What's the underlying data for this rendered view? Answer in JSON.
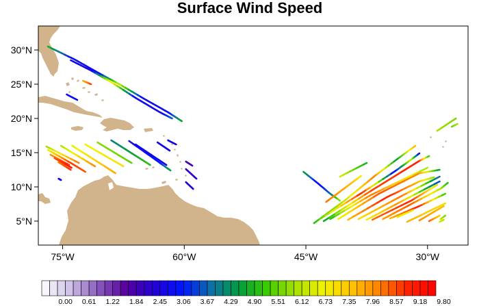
{
  "title": "Surface Wind Speed",
  "map": {
    "lon_range": [
      -78,
      -25
    ],
    "lat_range": [
      1.5,
      33.5
    ],
    "x_ticks": [
      {
        "value": -75,
        "label": "75°W"
      },
      {
        "value": -60,
        "label": "60°W"
      },
      {
        "value": -45,
        "label": "45°W"
      },
      {
        "value": -30,
        "label": "30°W"
      }
    ],
    "y_ticks": [
      {
        "value": 30,
        "label": "30°N"
      },
      {
        "value": 25,
        "label": "25°N"
      },
      {
        "value": 20,
        "label": "20°N"
      },
      {
        "value": 15,
        "label": "15°N"
      },
      {
        "value": 10,
        "label": "10°N"
      },
      {
        "value": 5,
        "label": "5°N"
      }
    ],
    "land_color": "#d2b48c"
  },
  "colorbar": {
    "min": 0,
    "max": 10.1,
    "labels": [
      "0.00",
      "0.61",
      "1.22",
      "1.84",
      "2.45",
      "3.06",
      "3.67",
      "4.29",
      "4.90",
      "5.51",
      "6.12",
      "6.73",
      "7.35",
      "7.96",
      "8.57",
      "9.18",
      "9.80"
    ],
    "stops": [
      "#ffffff",
      "#cfc2e6",
      "#8a5bbf",
      "#57009e",
      "#2200d6",
      "#0015ff",
      "#0d70a8",
      "#009c3f",
      "#3ccc00",
      "#a8e000",
      "#f2f200",
      "#ffc400",
      "#ff8000",
      "#ff2400",
      "#ff0000"
    ]
  },
  "swaths": [
    {
      "points": [
        [
          -76.8,
          30.5,
          5.4
        ],
        [
          -73.5,
          28.6,
          3.3
        ],
        [
          -70.5,
          26.6,
          3.2
        ],
        [
          -68,
          25,
          6.8
        ],
        [
          -65,
          22.9,
          3.3
        ],
        [
          -62,
          20.9,
          3.3
        ],
        [
          -60.3,
          19.6,
          5.3
        ]
      ]
    },
    {
      "points": [
        [
          -74,
          28.5,
          3.3
        ],
        [
          -71.5,
          27,
          3.0
        ],
        [
          -69,
          25.3,
          7.5
        ],
        [
          -66,
          23,
          3.3
        ],
        [
          -63,
          20.9,
          3.2
        ],
        [
          -61.5,
          20,
          4.2
        ]
      ]
    },
    {
      "points": [
        [
          -72.5,
          25.5,
          8.0
        ],
        [
          -71.5,
          25,
          9.2
        ]
      ]
    },
    {
      "points": [
        [
          -74.5,
          23.5,
          3.3
        ],
        [
          -73.2,
          22.7,
          3.3
        ]
      ]
    },
    {
      "points": [
        [
          -77,
          15.9,
          6.3
        ],
        [
          -73,
          13.5,
          8.8
        ]
      ]
    },
    {
      "points": [
        [
          -76.8,
          15.4,
          7.3
        ],
        [
          -74,
          13.5,
          9.2
        ],
        [
          -72.2,
          12.2,
          9.0
        ]
      ]
    },
    {
      "points": [
        [
          -76.5,
          14.7,
          8.4
        ],
        [
          -74.2,
          13.2,
          9.4
        ]
      ]
    },
    {
      "points": [
        [
          -76,
          14.2,
          9.0
        ],
        [
          -73.9,
          12.8,
          9.6
        ]
      ]
    },
    {
      "points": [
        [
          -75.5,
          13.6,
          8.7
        ],
        [
          -74,
          12.5,
          9.3
        ]
      ]
    },
    {
      "points": [
        [
          -75.2,
          16,
          6.5
        ],
        [
          -71,
          13,
          8.6
        ]
      ]
    },
    {
      "points": [
        [
          -73.8,
          16,
          7.0
        ],
        [
          -69.8,
          13,
          8.0
        ],
        [
          -68.5,
          12,
          8.2
        ]
      ]
    },
    {
      "points": [
        [
          -72.2,
          16.2,
          7.2
        ],
        [
          -67.5,
          13,
          7.5
        ]
      ]
    },
    {
      "points": [
        [
          -70.7,
          16.5,
          6.3
        ],
        [
          -66.5,
          13.5,
          6.0
        ]
      ]
    },
    {
      "points": [
        [
          -69,
          16.8,
          4.6
        ],
        [
          -64.2,
          13.2,
          5.6
        ]
      ]
    },
    {
      "points": [
        [
          -66.8,
          16.7,
          3.2
        ],
        [
          -63,
          13.5,
          3.5
        ],
        [
          -61.7,
          12.4,
          5.2
        ]
      ]
    },
    {
      "points": [
        [
          -66,
          16.2,
          3.3
        ],
        [
          -62.2,
          13.2,
          3.3
        ]
      ]
    },
    {
      "points": [
        [
          -63.3,
          16.5,
          3.1
        ],
        [
          -61.8,
          15.3,
          3.2
        ]
      ]
    },
    {
      "points": [
        [
          -62,
          16.8,
          3.3
        ],
        [
          -61,
          16.2,
          3.0
        ]
      ]
    },
    {
      "points": [
        [
          -59.8,
          13.7,
          2.5
        ],
        [
          -59,
          13.1,
          2.4
        ]
      ]
    },
    {
      "points": [
        [
          -59.8,
          12.6,
          2.6
        ],
        [
          -58.5,
          11.2,
          2.8
        ]
      ]
    },
    {
      "points": [
        [
          -59.8,
          10.7,
          2.7
        ],
        [
          -58.9,
          9.7,
          3.0
        ]
      ]
    },
    {
      "points": [
        [
          -75.5,
          11.2,
          3.2
        ],
        [
          -75.2,
          11,
          3.2
        ]
      ]
    },
    {
      "points": [
        [
          -45.3,
          12.2,
          5.2
        ],
        [
          -43.5,
          10.5,
          3.3
        ],
        [
          -42,
          9,
          4.2
        ],
        [
          -40.8,
          8,
          6.5
        ]
      ]
    },
    {
      "points": [
        [
          -44,
          4.7,
          5.5
        ],
        [
          -40,
          8.2,
          6.8
        ],
        [
          -36.5,
          11.6,
          8.7
        ],
        [
          -33.8,
          14,
          5.0
        ],
        [
          -31.5,
          16,
          8.2
        ]
      ]
    },
    {
      "points": [
        [
          -43.3,
          5.3,
          5.9
        ],
        [
          -38,
          9.2,
          9.5
        ],
        [
          -34,
          12.3,
          3.3
        ],
        [
          -32,
          14,
          7.0
        ],
        [
          -31,
          14.9,
          3.2
        ]
      ]
    },
    {
      "points": [
        [
          -42.5,
          7.8,
          8.8
        ],
        [
          -39,
          10.9,
          7.9
        ],
        [
          -38.2,
          11.6,
          7.1
        ]
      ]
    },
    {
      "points": [
        [
          -40.8,
          11.5,
          7.0
        ],
        [
          -37.5,
          13.5,
          5.3
        ]
      ]
    },
    {
      "points": [
        [
          -42.8,
          5,
          5.0
        ],
        [
          -37,
          9.4,
          9.1
        ],
        [
          -31,
          13.8,
          9.5
        ],
        [
          -29.8,
          14.5,
          5.6
        ]
      ]
    },
    {
      "points": [
        [
          -42,
          5.3,
          5.4
        ],
        [
          -37,
          8.8,
          8.8
        ],
        [
          -30,
          12.8,
          6.5
        ]
      ]
    },
    {
      "points": [
        [
          -41,
          5.3,
          7.0
        ],
        [
          -36,
          9,
          9.0
        ],
        [
          -31,
          12,
          8.5
        ],
        [
          -28.5,
          12.5,
          5.0
        ]
      ]
    },
    {
      "points": [
        [
          -39.8,
          5.2,
          8.0
        ],
        [
          -35,
          8.5,
          9.5
        ],
        [
          -31,
          10.8,
          8.0
        ],
        [
          -29.2,
          11.4,
          6.3
        ]
      ]
    },
    {
      "points": [
        [
          -38.5,
          5.3,
          7.5
        ],
        [
          -33,
          8.8,
          8.8
        ],
        [
          -28.5,
          11.5,
          4.2
        ]
      ]
    },
    {
      "points": [
        [
          -37.5,
          5.2,
          7.2
        ],
        [
          -33.5,
          7.7,
          8.5
        ],
        [
          -28.5,
          10.8,
          3.8
        ]
      ]
    },
    {
      "points": [
        [
          -36.8,
          5.2,
          8.8
        ],
        [
          -32,
          8,
          9.4
        ],
        [
          -28.8,
          10.3,
          6.8
        ]
      ]
    },
    {
      "points": [
        [
          -35.5,
          5.3,
          8.3
        ],
        [
          -32,
          7.5,
          9.0
        ],
        [
          -28.3,
          9.8,
          6.5
        ],
        [
          -27.5,
          10.6,
          5.5
        ]
      ]
    },
    {
      "points": [
        [
          -34.6,
          5.4,
          8.0
        ],
        [
          -31,
          7.2,
          9.5
        ],
        [
          -27.8,
          9.0,
          5.6
        ]
      ]
    },
    {
      "points": [
        [
          -33.7,
          5.6,
          7.0
        ],
        [
          -31.8,
          6.6,
          7.5
        ]
      ]
    },
    {
      "points": [
        [
          -31,
          5.1,
          8.5
        ],
        [
          -28,
          7.2,
          8.0
        ]
      ]
    },
    {
      "points": [
        [
          -32.5,
          4.9,
          8.2
        ],
        [
          -27.8,
          7.6,
          7.5
        ]
      ]
    },
    {
      "points": [
        [
          -29.8,
          5,
          9.0
        ],
        [
          -28.5,
          5.8,
          7.8
        ]
      ]
    },
    {
      "points": [
        [
          -28.4,
          5.3,
          6.9
        ],
        [
          -27.8,
          5.8,
          6.2
        ]
      ]
    },
    {
      "points": [
        [
          -28.5,
          4.9,
          7.0
        ],
        [
          -28,
          5.2,
          6.7
        ]
      ]
    },
    {
      "points": [
        [
          -28.8,
          18.2,
          6.5
        ],
        [
          -26.5,
          20,
          6.2
        ]
      ]
    },
    {
      "points": [
        [
          -27,
          18.8,
          6.0
        ],
        [
          -26.3,
          19.2,
          6.5
        ]
      ]
    }
  ]
}
